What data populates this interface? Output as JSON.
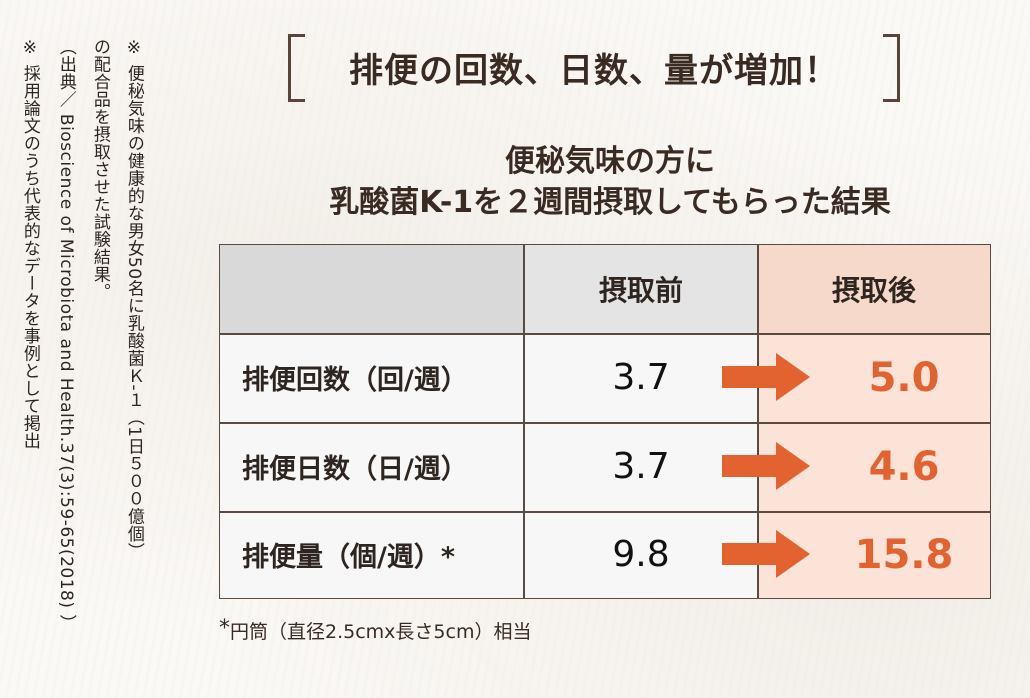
{
  "notes": {
    "line1": "※ 便秘気味の健康的な男女50名に乳酸菌Ｋ-１（1日５００億個）",
    "line2": "の配合品を摂取させた試験結果。",
    "line3": "（出典／ Bioscience of Microbiota and Health.37(3):59-65(2018) ）",
    "line4": "※ 採用論文のうち代表的なデータを事例として掲出"
  },
  "title": "排便の回数、日数、量が増加！",
  "subtitle": {
    "line1": "便秘気味の方に",
    "line2": "乳酸菌K-1を２週間摂取してもらった結果"
  },
  "table": {
    "header": {
      "empty": "",
      "before": "摂取前",
      "after": "摂取後"
    },
    "rows": [
      {
        "label": "排便回数（回/週）",
        "before": "3.7",
        "after": "5.0"
      },
      {
        "label": "排便日数（日/週）",
        "before": "3.7",
        "after": "4.6"
      },
      {
        "label": "排便量（個/週）*",
        "before": "9.8",
        "after": "15.8"
      }
    ]
  },
  "footnote": {
    "mark": "*",
    "text": "円筒（直径2.5cmx長さ5cm）相当"
  },
  "colors": {
    "accent": "#e2632f",
    "after_column": "#fbe3d8",
    "header_gray": "#d9d9d9"
  }
}
